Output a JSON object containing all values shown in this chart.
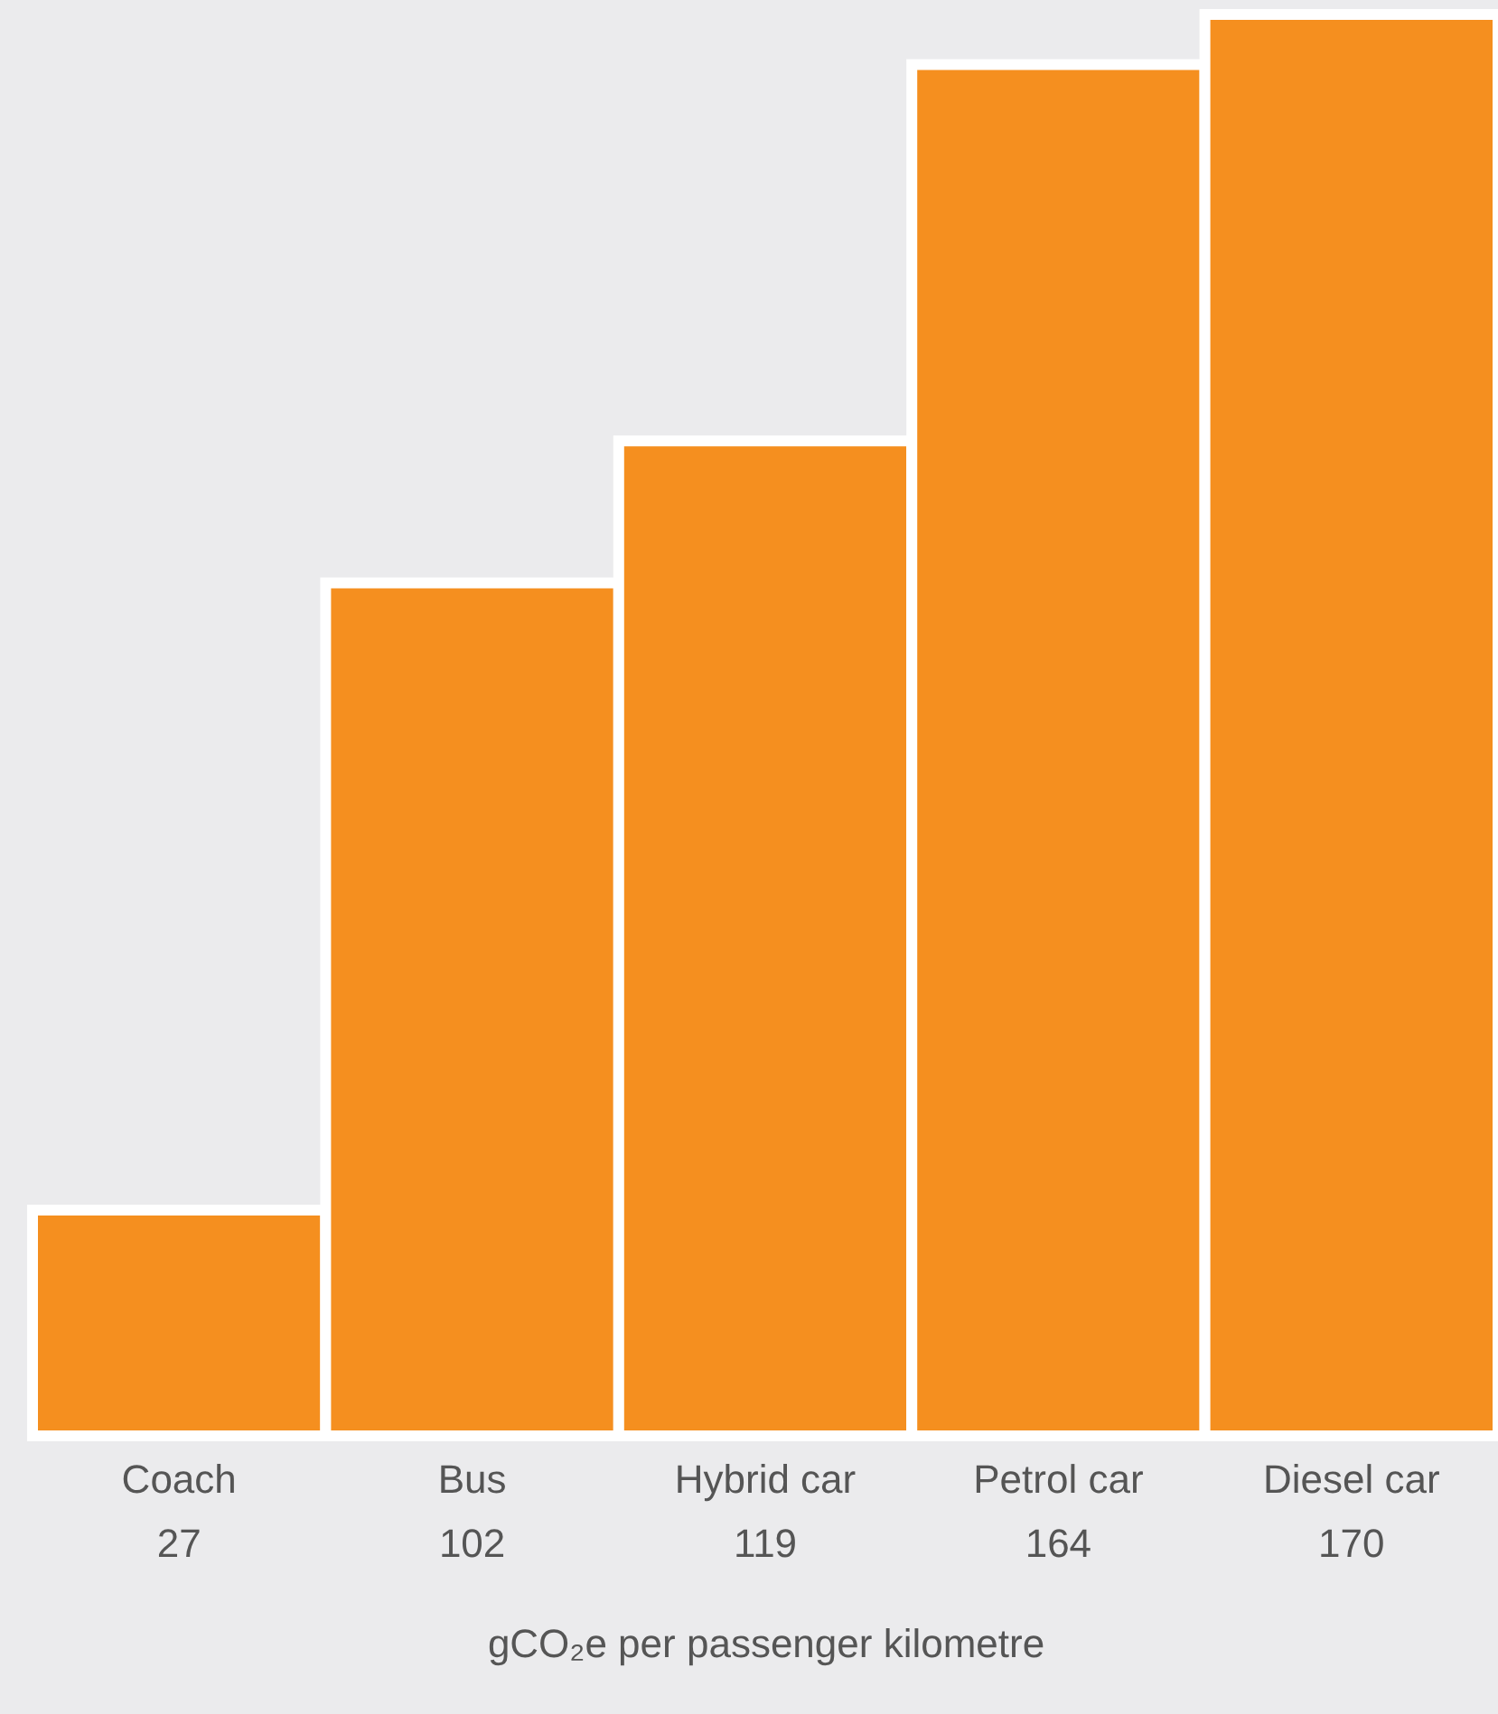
{
  "chart_data": {
    "type": "bar",
    "categories": [
      "Coach",
      "Bus",
      "Hybrid car",
      "Petrol car",
      "Diesel car"
    ],
    "values": [
      27,
      102,
      119,
      164,
      170
    ],
    "color": "#f58f1f",
    "xlabel": "gCO₂e per passenger kilometre",
    "data_labels": true
  }
}
